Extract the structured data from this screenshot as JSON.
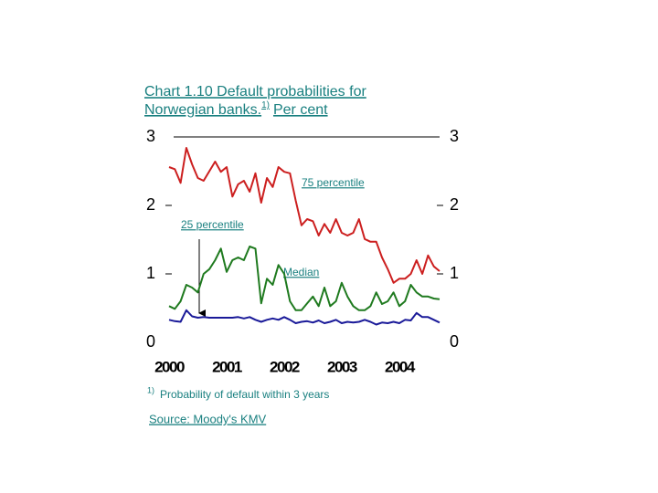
{
  "chart_data": {
    "type": "line",
    "title": [
      "Chart 1.10 Default probabilities for",
      "Norwegian banks."
    ],
    "title_note_marker": "1)",
    "title_suffix": "Per cent",
    "footnote_marker": "1)",
    "footnote": "Probability of default within 3 years",
    "source": "Source: Moody's KMV",
    "x": [
      2000.0,
      2000.1,
      2000.2,
      2000.3,
      2000.4,
      2000.5,
      2000.6,
      2000.7,
      2000.8,
      2000.9,
      2001.0,
      2001.1,
      2001.2,
      2001.3,
      2001.4,
      2001.5,
      2001.6,
      2001.7,
      2001.8,
      2001.9,
      2002.0,
      2002.1,
      2002.2,
      2002.3,
      2002.4,
      2002.5,
      2002.6,
      2002.7,
      2002.8,
      2002.9,
      2003.0,
      2003.1,
      2003.2,
      2003.3,
      2003.4,
      2003.5,
      2003.6,
      2003.7,
      2003.8,
      2003.9,
      2004.0,
      2004.1,
      2004.2,
      2004.3,
      2004.4,
      2004.5,
      2004.6,
      2004.7
    ],
    "xlim": [
      2000,
      2004.7
    ],
    "xticks": [
      2000,
      2001,
      2002,
      2003,
      2004
    ],
    "ylim": [
      0,
      3
    ],
    "yticks": [
      0,
      1,
      2,
      3
    ],
    "y2lim": [
      0,
      3
    ],
    "y2ticks": [
      0,
      1,
      2,
      3
    ],
    "series": [
      {
        "name": "75 percentile",
        "color": "#cc1f1f",
        "values": [
          2.56,
          2.53,
          2.33,
          2.84,
          2.6,
          2.4,
          2.36,
          2.5,
          2.64,
          2.49,
          2.56,
          2.13,
          2.31,
          2.36,
          2.2,
          2.47,
          2.04,
          2.4,
          2.27,
          2.56,
          2.49,
          2.47,
          2.07,
          1.71,
          1.8,
          1.77,
          1.56,
          1.73,
          1.6,
          1.8,
          1.6,
          1.56,
          1.6,
          1.8,
          1.51,
          1.47,
          1.47,
          1.24,
          1.07,
          0.87,
          0.93,
          0.93,
          1.0,
          1.2,
          1.0,
          1.27,
          1.11,
          1.04
        ]
      },
      {
        "name": "Median",
        "color": "#1f7a1f",
        "values": [
          0.53,
          0.49,
          0.6,
          0.84,
          0.8,
          0.73,
          1.0,
          1.07,
          1.2,
          1.37,
          1.03,
          1.2,
          1.24,
          1.2,
          1.4,
          1.37,
          0.57,
          0.93,
          0.84,
          1.13,
          1.0,
          0.6,
          0.47,
          0.47,
          0.57,
          0.67,
          0.53,
          0.8,
          0.53,
          0.6,
          0.87,
          0.67,
          0.53,
          0.47,
          0.47,
          0.53,
          0.73,
          0.56,
          0.6,
          0.73,
          0.53,
          0.6,
          0.84,
          0.73,
          0.67,
          0.67,
          0.64,
          0.63
        ]
      },
      {
        "name": "25 percentile",
        "color": "#1a1a99",
        "values": [
          0.33,
          0.31,
          0.3,
          0.47,
          0.38,
          0.36,
          0.37,
          0.36,
          0.36,
          0.36,
          0.36,
          0.36,
          0.37,
          0.35,
          0.37,
          0.33,
          0.3,
          0.33,
          0.35,
          0.33,
          0.37,
          0.33,
          0.28,
          0.3,
          0.31,
          0.29,
          0.32,
          0.28,
          0.3,
          0.33,
          0.28,
          0.3,
          0.29,
          0.3,
          0.33,
          0.3,
          0.26,
          0.29,
          0.28,
          0.3,
          0.28,
          0.33,
          0.32,
          0.43,
          0.37,
          0.37,
          0.33,
          0.29
        ]
      }
    ]
  }
}
